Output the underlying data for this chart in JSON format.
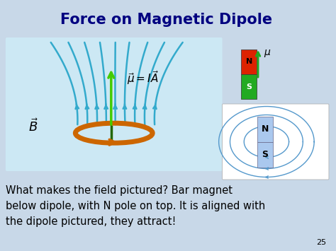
{
  "title": "Force on Magnetic Dipole",
  "title_color": "#000080",
  "title_fontsize": 15,
  "bg_color": "#c8d8e8",
  "main_image_bg": "#cce8f4",
  "body_text_line1": "What makes the field pictured? Bar magnet",
  "body_text_line2": "below dipole, with N pole on top. It is aligned with",
  "body_text_line3": "the dipole pictured, they attract!",
  "body_fontsize": 10.5,
  "body_color": "#000000",
  "page_number": "25",
  "loop_color": "#cc6600",
  "field_line_color": "#33aacc",
  "arrow_green_bright": "#44cc00",
  "arrow_green_dark": "#226600",
  "magnet_n_color": "#dd2200",
  "magnet_s_color": "#33aa33",
  "dipole_field_color": "#5599cc",
  "dipole_magnet_color": "#aac8dd"
}
